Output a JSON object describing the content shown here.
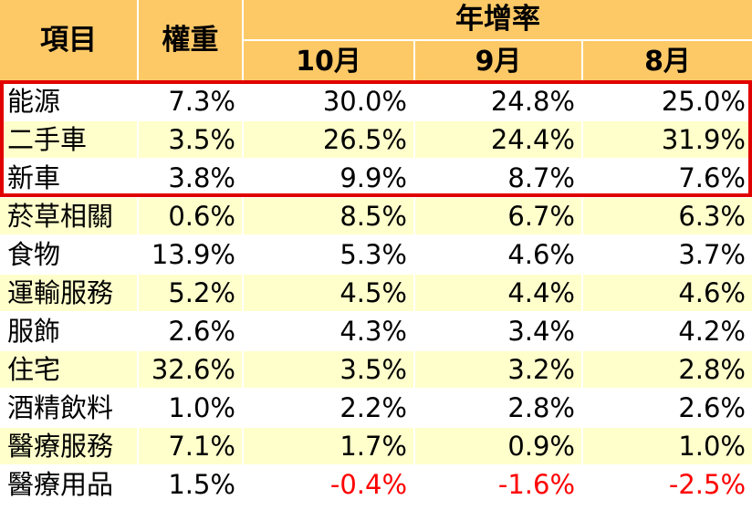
{
  "chart_data": {
    "type": "table",
    "header": {
      "item_label": "項目",
      "weight_label": "權重",
      "group_label": "年增率",
      "months": [
        "10月",
        "9月",
        "8月"
      ]
    },
    "columns": [
      "項目",
      "權重",
      "10月",
      "9月",
      "8月"
    ],
    "rows": [
      {
        "item": "能源",
        "weight": "7.3%",
        "oct": "30.0%",
        "sep": "24.8%",
        "aug": "25.0%"
      },
      {
        "item": "二手車",
        "weight": "3.5%",
        "oct": "26.5%",
        "sep": "24.4%",
        "aug": "31.9%"
      },
      {
        "item": "新車",
        "weight": "3.8%",
        "oct": "9.9%",
        "sep": "8.7%",
        "aug": "7.6%"
      },
      {
        "item": "菸草相關",
        "weight": "0.6%",
        "oct": "8.5%",
        "sep": "6.7%",
        "aug": "6.3%"
      },
      {
        "item": "食物",
        "weight": "13.9%",
        "oct": "5.3%",
        "sep": "4.6%",
        "aug": "3.7%"
      },
      {
        "item": "運輸服務",
        "weight": "5.2%",
        "oct": "4.5%",
        "sep": "4.4%",
        "aug": "4.6%"
      },
      {
        "item": "服飾",
        "weight": "2.6%",
        "oct": "4.3%",
        "sep": "3.4%",
        "aug": "4.2%"
      },
      {
        "item": "住宅",
        "weight": "32.6%",
        "oct": "3.5%",
        "sep": "3.2%",
        "aug": "2.8%"
      },
      {
        "item": "酒精飲料",
        "weight": "1.0%",
        "oct": "2.2%",
        "sep": "2.8%",
        "aug": "2.6%"
      },
      {
        "item": "醫療服務",
        "weight": "7.1%",
        "oct": "1.7%",
        "sep": "0.9%",
        "aug": "1.0%"
      },
      {
        "item": "醫療用品",
        "weight": "1.5%",
        "oct": "-0.4%",
        "sep": "-1.6%",
        "aug": "-2.5%"
      }
    ],
    "highlighted_items": [
      "能源",
      "二手車",
      "新車"
    ]
  },
  "colors": {
    "header_bg": "#fdc966",
    "row_even_bg": "#ffffff",
    "row_odd_bg": "#ffffcc",
    "gridline": "#ffffff",
    "highlight_border": "#e00000",
    "negative_text": "#fe0000",
    "text": "#000000"
  }
}
